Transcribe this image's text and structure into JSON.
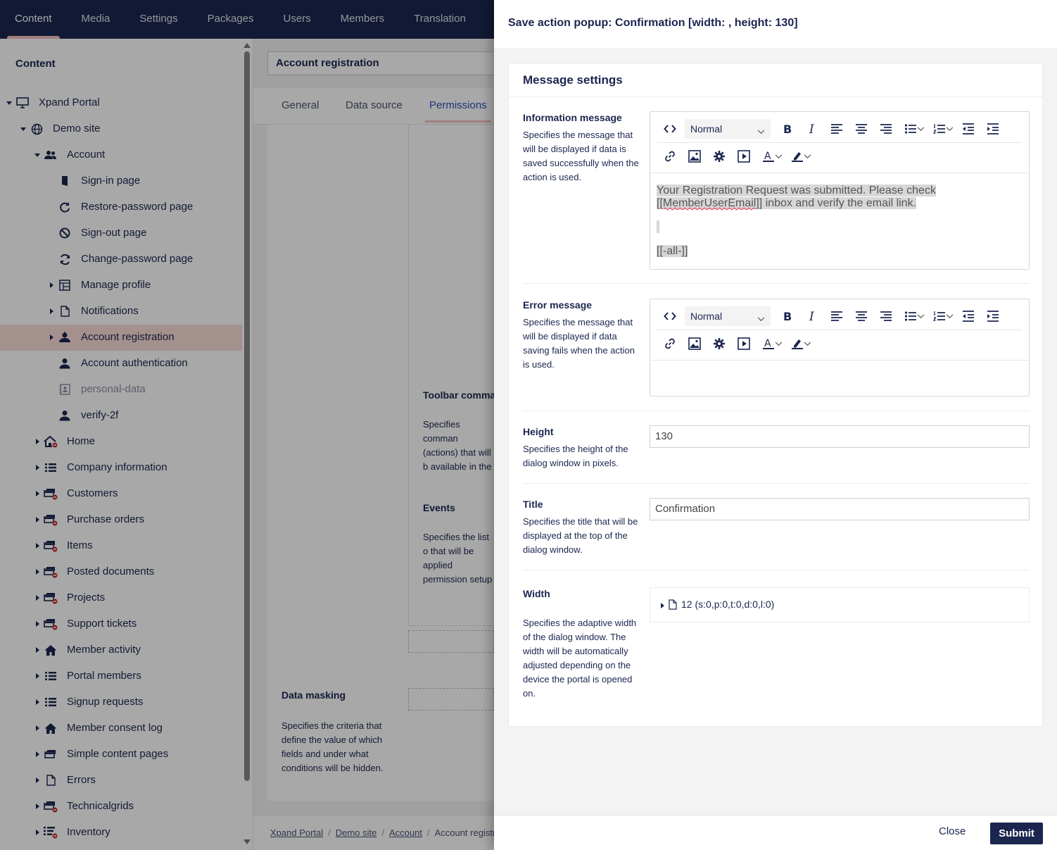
{
  "topnav": {
    "items": [
      "Content",
      "Media",
      "Settings",
      "Packages",
      "Users",
      "Members",
      "Translation"
    ],
    "active": "Content"
  },
  "tree": {
    "header": "Content",
    "items": [
      {
        "label": "Xpand Portal",
        "icon": "monitor-icon",
        "caret": "down",
        "level": 0
      },
      {
        "label": "Demo site",
        "icon": "globe-icon",
        "caret": "down",
        "level": 1
      },
      {
        "label": "Account",
        "icon": "users-icon",
        "caret": "down",
        "level": 2
      },
      {
        "label": "Sign-in page",
        "icon": "door-icon",
        "caret": "",
        "level": 3
      },
      {
        "label": "Restore-password page",
        "icon": "refresh-icon",
        "caret": "",
        "level": 3
      },
      {
        "label": "Sign-out page",
        "icon": "ban-icon",
        "caret": "",
        "level": 3
      },
      {
        "label": "Change-password page",
        "icon": "sync-icon",
        "caret": "",
        "level": 3
      },
      {
        "label": "Manage profile",
        "icon": "layout-icon",
        "caret": "right",
        "level": 3
      },
      {
        "label": "Notifications",
        "icon": "file-icon",
        "caret": "right",
        "level": 3
      },
      {
        "label": "Account registration",
        "icon": "user-add-icon",
        "caret": "right",
        "level": 3,
        "selected": true
      },
      {
        "label": "Account authentication",
        "icon": "user-icon",
        "caret": "",
        "level": 3
      },
      {
        "label": "personal-data",
        "icon": "contact-card-icon",
        "caret": "",
        "level": 3,
        "muted": true
      },
      {
        "label": "verify-2f",
        "icon": "user-icon",
        "caret": "",
        "level": 3
      },
      {
        "label": "Home",
        "icon": "home-lock-icon",
        "caret": "right",
        "level": 2
      },
      {
        "label": "Company information",
        "icon": "list-icon",
        "caret": "right",
        "level": 2
      },
      {
        "label": "Customers",
        "icon": "grid-lock-icon",
        "caret": "right",
        "level": 2
      },
      {
        "label": "Purchase orders",
        "icon": "grid-lock-icon",
        "caret": "right",
        "level": 2
      },
      {
        "label": "Items",
        "icon": "grid-lock-icon",
        "caret": "right",
        "level": 2
      },
      {
        "label": "Posted documents",
        "icon": "grid-lock-icon",
        "caret": "right",
        "level": 2
      },
      {
        "label": "Projects",
        "icon": "grid-lock-icon",
        "caret": "right",
        "level": 2
      },
      {
        "label": "Support tickets",
        "icon": "grid-lock-icon",
        "caret": "right",
        "level": 2
      },
      {
        "label": "Member activity",
        "icon": "home-icon",
        "caret": "right",
        "level": 2
      },
      {
        "label": "Portal members",
        "icon": "list-icon",
        "caret": "right",
        "level": 2
      },
      {
        "label": "Signup requests",
        "icon": "list-icon",
        "caret": "right",
        "level": 2
      },
      {
        "label": "Member consent log",
        "icon": "home-icon",
        "caret": "right",
        "level": 2
      },
      {
        "label": "Simple content pages",
        "icon": "grid-icon",
        "caret": "right",
        "level": 2
      },
      {
        "label": "Errors",
        "icon": "file-icon",
        "caret": "right",
        "level": 2
      },
      {
        "label": "Technicalgrids",
        "icon": "grid-lock-icon",
        "caret": "right",
        "level": 2
      },
      {
        "label": "Inventory",
        "icon": "list-lock-icon",
        "caret": "right",
        "level": 2
      }
    ]
  },
  "middle": {
    "title": "Account registration",
    "tabs": [
      "General",
      "Data source",
      "Permissions"
    ],
    "active_tab": "Permissions",
    "toolbar_heading": "Toolbar comman",
    "toolbar_desc": "Specifies comman (actions) that will b available in the top corner of the deta",
    "events_heading": "Events",
    "events_desc": "Specifies the list o that will be applied permission setup o or detail page.",
    "masking_heading": "Data masking",
    "masking_desc": "Specifies the criteria that define the value of which fields and under what conditions will be hidden.",
    "breadcrumb": [
      "Xpand Portal",
      "Demo site",
      "Account",
      "Account registr"
    ]
  },
  "panel": {
    "title": "Save action popup: Confirmation [width: , height: 130]",
    "card_title": "Message settings",
    "info": {
      "label": "Information message",
      "desc": "Specifies the message that will be displayed if data is saved successfully when the action is used.",
      "format": "Normal",
      "line1": "Your Registration Request was submitted. Please check",
      "line2_a": "[[MemberUserEmail]]",
      "line2_b": " inbox and verify the email link.",
      "line3": "[[-all-]]"
    },
    "error": {
      "label": "Error message",
      "desc": "Specifies the message that will be displayed if data saving fails when the action is used.",
      "format": "Normal"
    },
    "height": {
      "label": "Height",
      "desc": "Specifies the height of the dialog window in pixels.",
      "value": "130"
    },
    "title_field": {
      "label": "Title",
      "desc": "Specifies the title that will be displayed at the top of the dialog window.",
      "value": "Confirmation"
    },
    "width": {
      "label": "Width",
      "desc": "Specifies the adaptive width of the dialog window. The width will be automatically adjusted depending on the device the portal is opened on.",
      "value": "12 (s:0,p:0,t:0,d:0,l:0)"
    },
    "close_label": "Close",
    "submit_label": "Submit"
  },
  "colors": {
    "navy": "#1b264f",
    "accent_pink": "#f5c1bc",
    "selected_row": "#f9dcd8",
    "link_blue": "#2e4fb8"
  }
}
